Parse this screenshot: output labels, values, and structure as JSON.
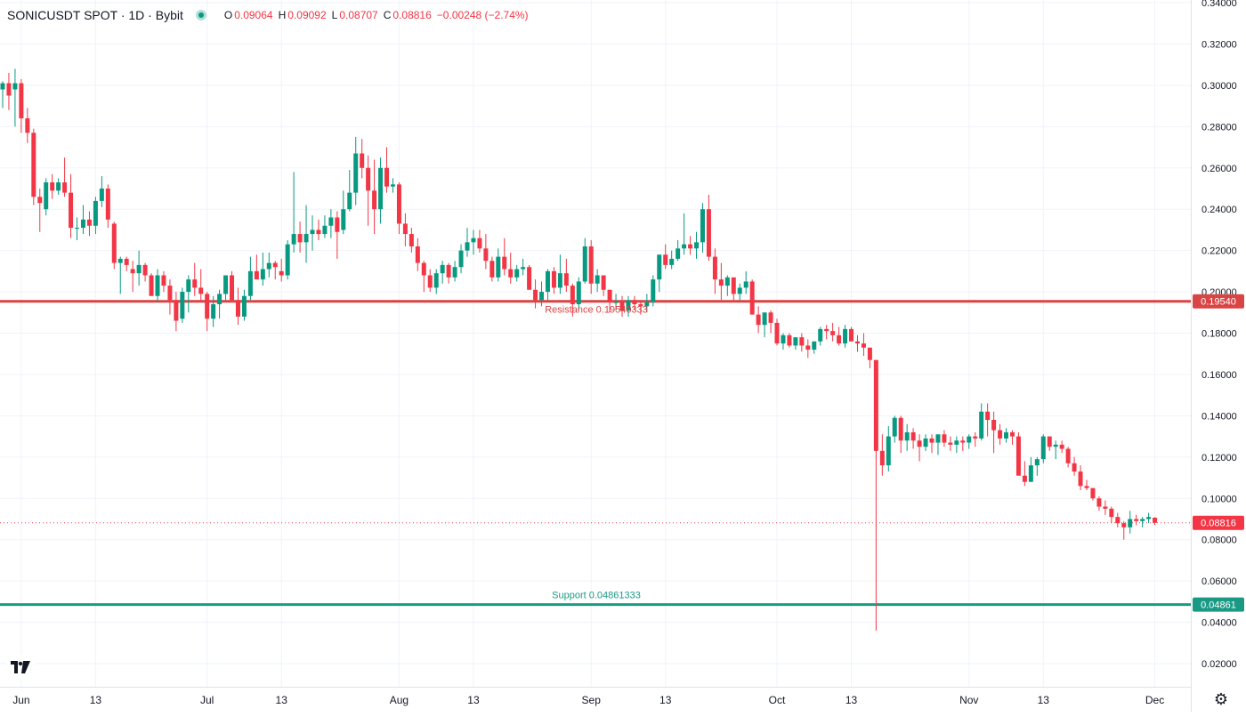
{
  "header": {
    "symbol": "SONICUSDT SPOT · 1D · Bybit",
    "o_label": "O",
    "o_value": "0.09064",
    "h_label": "H",
    "h_value": "0.09092",
    "l_label": "L",
    "l_value": "0.08707",
    "c_label": "C",
    "c_value": "0.08816",
    "change": "−0.00248 (−2.74%)"
  },
  "colors": {
    "up": "#089981",
    "down": "#f23645",
    "resistance": "#d94545",
    "support": "#1a9a85",
    "grid": "#f0f3fa",
    "text": "#131722"
  },
  "chart_data": {
    "type": "candlestick",
    "title": "SONICUSDT SPOT · 1D · Bybit",
    "y_ticks": [
      "0.34000",
      "0.32000",
      "0.30000",
      "0.28000",
      "0.26000",
      "0.24000",
      "0.22000",
      "0.20000",
      "0.18000",
      "0.16000",
      "0.14000",
      "0.12000",
      "0.10000",
      "0.08000",
      "0.06000",
      "0.04000",
      "0.02000"
    ],
    "ylim": [
      0.01,
      0.34
    ],
    "x_ticks": [
      {
        "date": "2025-06-01",
        "label": "Jun"
      },
      {
        "date": "2025-06-13",
        "label": "13"
      },
      {
        "date": "2025-07-01",
        "label": "Jul"
      },
      {
        "date": "2025-07-13",
        "label": "13"
      },
      {
        "date": "2025-08-01",
        "label": "Aug"
      },
      {
        "date": "2025-08-13",
        "label": "13"
      },
      {
        "date": "2025-09-01",
        "label": "Sep"
      },
      {
        "date": "2025-09-13",
        "label": "13"
      },
      {
        "date": "2025-10-01",
        "label": "Oct"
      },
      {
        "date": "2025-10-13",
        "label": "13"
      },
      {
        "date": "2025-11-01",
        "label": "Nov"
      },
      {
        "date": "2025-11-13",
        "label": "13"
      },
      {
        "date": "2025-12-01",
        "label": "Dec"
      }
    ],
    "first_date": "2025-05-29",
    "lines": [
      {
        "name": "Resistance",
        "value": 0.1954,
        "label": "Resistance 0.19540333",
        "price_label": "0.19540"
      },
      {
        "name": "Support",
        "value": 0.04861,
        "label": "Support 0.04861333",
        "price_label": "0.04861"
      }
    ],
    "last_price": {
      "value": 0.08816,
      "label": "0.08816"
    },
    "candles": [
      [
        0.298,
        0.302,
        0.289,
        0.301
      ],
      [
        0.301,
        0.306,
        0.288,
        0.295
      ],
      [
        0.298,
        0.308,
        0.28,
        0.301
      ],
      [
        0.301,
        0.303,
        0.277,
        0.284
      ],
      [
        0.284,
        0.289,
        0.272,
        0.277
      ],
      [
        0.277,
        0.279,
        0.242,
        0.246
      ],
      [
        0.246,
        0.25,
        0.229,
        0.243
      ],
      [
        0.24,
        0.255,
        0.237,
        0.253
      ],
      [
        0.253,
        0.257,
        0.245,
        0.249
      ],
      [
        0.249,
        0.255,
        0.247,
        0.253
      ],
      [
        0.253,
        0.265,
        0.246,
        0.248
      ],
      [
        0.248,
        0.257,
        0.226,
        0.231
      ],
      [
        0.231,
        0.236,
        0.225,
        0.231
      ],
      [
        0.231,
        0.242,
        0.228,
        0.235
      ],
      [
        0.235,
        0.239,
        0.227,
        0.232
      ],
      [
        0.232,
        0.246,
        0.228,
        0.244
      ],
      [
        0.244,
        0.256,
        0.241,
        0.25
      ],
      [
        0.25,
        0.252,
        0.231,
        0.235
      ],
      [
        0.233,
        0.234,
        0.211,
        0.214
      ],
      [
        0.214,
        0.217,
        0.199,
        0.216
      ],
      [
        0.216,
        0.217,
        0.21,
        0.213
      ],
      [
        0.211,
        0.215,
        0.2,
        0.209
      ],
      [
        0.209,
        0.22,
        0.203,
        0.213
      ],
      [
        0.213,
        0.214,
        0.205,
        0.208
      ],
      [
        0.208,
        0.209,
        0.198,
        0.198
      ],
      [
        0.198,
        0.211,
        0.195,
        0.208
      ],
      [
        0.208,
        0.21,
        0.2,
        0.203
      ],
      [
        0.203,
        0.206,
        0.189,
        0.196
      ],
      [
        0.196,
        0.2,
        0.181,
        0.186
      ],
      [
        0.187,
        0.202,
        0.185,
        0.2
      ],
      [
        0.2,
        0.208,
        0.19,
        0.206
      ],
      [
        0.206,
        0.214,
        0.198,
        0.202
      ],
      [
        0.202,
        0.211,
        0.195,
        0.199
      ],
      [
        0.199,
        0.2,
        0.181,
        0.187
      ],
      [
        0.187,
        0.198,
        0.183,
        0.194
      ],
      [
        0.194,
        0.201,
        0.187,
        0.199
      ],
      [
        0.199,
        0.208,
        0.196,
        0.208
      ],
      [
        0.208,
        0.21,
        0.196,
        0.196
      ],
      [
        0.196,
        0.202,
        0.184,
        0.188
      ],
      [
        0.188,
        0.201,
        0.186,
        0.198
      ],
      [
        0.198,
        0.217,
        0.196,
        0.21
      ],
      [
        0.21,
        0.218,
        0.206,
        0.206
      ],
      [
        0.206,
        0.219,
        0.203,
        0.211
      ],
      [
        0.211,
        0.219,
        0.207,
        0.214
      ],
      [
        0.214,
        0.215,
        0.206,
        0.212
      ],
      [
        0.21,
        0.216,
        0.205,
        0.208
      ],
      [
        0.208,
        0.225,
        0.206,
        0.223
      ],
      [
        0.223,
        0.258,
        0.219,
        0.228
      ],
      [
        0.228,
        0.234,
        0.219,
        0.224
      ],
      [
        0.224,
        0.242,
        0.214,
        0.228
      ],
      [
        0.228,
        0.237,
        0.22,
        0.23
      ],
      [
        0.23,
        0.235,
        0.225,
        0.228
      ],
      [
        0.228,
        0.237,
        0.226,
        0.232
      ],
      [
        0.232,
        0.24,
        0.226,
        0.236
      ],
      [
        0.236,
        0.239,
        0.216,
        0.229
      ],
      [
        0.23,
        0.249,
        0.228,
        0.24
      ],
      [
        0.24,
        0.259,
        0.239,
        0.248
      ],
      [
        0.248,
        0.275,
        0.242,
        0.267
      ],
      [
        0.267,
        0.274,
        0.255,
        0.26
      ],
      [
        0.26,
        0.266,
        0.232,
        0.249
      ],
      [
        0.249,
        0.264,
        0.228,
        0.24
      ],
      [
        0.24,
        0.265,
        0.233,
        0.26
      ],
      [
        0.26,
        0.27,
        0.248,
        0.251
      ],
      [
        0.251,
        0.255,
        0.248,
        0.252
      ],
      [
        0.252,
        0.253,
        0.228,
        0.233
      ],
      [
        0.233,
        0.238,
        0.222,
        0.228
      ],
      [
        0.228,
        0.231,
        0.219,
        0.222
      ],
      [
        0.222,
        0.226,
        0.21,
        0.214
      ],
      [
        0.214,
        0.215,
        0.2,
        0.208
      ],
      [
        0.208,
        0.211,
        0.2,
        0.202
      ],
      [
        0.202,
        0.211,
        0.199,
        0.209
      ],
      [
        0.209,
        0.215,
        0.204,
        0.213
      ],
      [
        0.213,
        0.214,
        0.204,
        0.207
      ],
      [
        0.207,
        0.215,
        0.205,
        0.212
      ],
      [
        0.212,
        0.223,
        0.209,
        0.22
      ],
      [
        0.22,
        0.231,
        0.217,
        0.224
      ],
      [
        0.224,
        0.23,
        0.218,
        0.226
      ],
      [
        0.226,
        0.23,
        0.219,
        0.221
      ],
      [
        0.221,
        0.228,
        0.211,
        0.215
      ],
      [
        0.215,
        0.217,
        0.205,
        0.207
      ],
      [
        0.207,
        0.221,
        0.205,
        0.217
      ],
      [
        0.217,
        0.226,
        0.208,
        0.211
      ],
      [
        0.211,
        0.219,
        0.204,
        0.207
      ],
      [
        0.207,
        0.213,
        0.205,
        0.211
      ],
      [
        0.211,
        0.216,
        0.208,
        0.212
      ],
      [
        0.212,
        0.213,
        0.201,
        0.201
      ],
      [
        0.201,
        0.206,
        0.192,
        0.196
      ],
      [
        0.196,
        0.205,
        0.193,
        0.2
      ],
      [
        0.2,
        0.211,
        0.196,
        0.21
      ],
      [
        0.21,
        0.212,
        0.199,
        0.202
      ],
      [
        0.202,
        0.218,
        0.199,
        0.209
      ],
      [
        0.209,
        0.216,
        0.2,
        0.203
      ],
      [
        0.203,
        0.204,
        0.188,
        0.194
      ],
      [
        0.194,
        0.207,
        0.191,
        0.205
      ],
      [
        0.205,
        0.226,
        0.204,
        0.222
      ],
      [
        0.222,
        0.225,
        0.199,
        0.204
      ],
      [
        0.204,
        0.211,
        0.2,
        0.208
      ],
      [
        0.208,
        0.207,
        0.198,
        0.201
      ],
      [
        0.201,
        0.201,
        0.19,
        0.195
      ],
      [
        0.195,
        0.199,
        0.191,
        0.195
      ],
      [
        0.195,
        0.198,
        0.188,
        0.191
      ],
      [
        0.191,
        0.198,
        0.188,
        0.196
      ],
      [
        0.196,
        0.198,
        0.191,
        0.194
      ],
      [
        0.194,
        0.196,
        0.189,
        0.193
      ],
      [
        0.193,
        0.199,
        0.19,
        0.195
      ],
      [
        0.195,
        0.208,
        0.193,
        0.206
      ],
      [
        0.206,
        0.218,
        0.2,
        0.218
      ],
      [
        0.218,
        0.223,
        0.211,
        0.213
      ],
      [
        0.213,
        0.22,
        0.211,
        0.216
      ],
      [
        0.216,
        0.225,
        0.215,
        0.221
      ],
      [
        0.221,
        0.238,
        0.218,
        0.223
      ],
      [
        0.223,
        0.227,
        0.218,
        0.221
      ],
      [
        0.221,
        0.229,
        0.216,
        0.224
      ],
      [
        0.224,
        0.243,
        0.219,
        0.24
      ],
      [
        0.24,
        0.247,
        0.215,
        0.217
      ],
      [
        0.217,
        0.221,
        0.199,
        0.206
      ],
      [
        0.206,
        0.214,
        0.196,
        0.203
      ],
      [
        0.203,
        0.208,
        0.198,
        0.207
      ],
      [
        0.207,
        0.206,
        0.195,
        0.199
      ],
      [
        0.199,
        0.204,
        0.196,
        0.202
      ],
      [
        0.202,
        0.21,
        0.199,
        0.205
      ],
      [
        0.205,
        0.206,
        0.189,
        0.189
      ],
      [
        0.189,
        0.193,
        0.18,
        0.184
      ],
      [
        0.184,
        0.19,
        0.178,
        0.19
      ],
      [
        0.19,
        0.191,
        0.18,
        0.185
      ],
      [
        0.185,
        0.187,
        0.174,
        0.175
      ],
      [
        0.175,
        0.18,
        0.172,
        0.179
      ],
      [
        0.179,
        0.18,
        0.173,
        0.174
      ],
      [
        0.174,
        0.178,
        0.172,
        0.178
      ],
      [
        0.178,
        0.18,
        0.171,
        0.174
      ],
      [
        0.174,
        0.177,
        0.168,
        0.172
      ],
      [
        0.172,
        0.176,
        0.17,
        0.176
      ],
      [
        0.176,
        0.183,
        0.174,
        0.182
      ],
      [
        0.182,
        0.184,
        0.177,
        0.181
      ],
      [
        0.181,
        0.185,
        0.176,
        0.179
      ],
      [
        0.179,
        0.183,
        0.174,
        0.175
      ],
      [
        0.175,
        0.184,
        0.173,
        0.182
      ],
      [
        0.182,
        0.183,
        0.176,
        0.176
      ],
      [
        0.176,
        0.179,
        0.171,
        0.175
      ],
      [
        0.175,
        0.18,
        0.169,
        0.173
      ],
      [
        0.173,
        0.172,
        0.163,
        0.167
      ],
      [
        0.167,
        0.167,
        0.036,
        0.123
      ],
      [
        0.123,
        0.131,
        0.111,
        0.116
      ],
      [
        0.116,
        0.135,
        0.113,
        0.13
      ],
      [
        0.13,
        0.14,
        0.127,
        0.139
      ],
      [
        0.139,
        0.14,
        0.122,
        0.128
      ],
      [
        0.128,
        0.136,
        0.123,
        0.132
      ],
      [
        0.132,
        0.134,
        0.124,
        0.128
      ],
      [
        0.128,
        0.131,
        0.118,
        0.125
      ],
      [
        0.125,
        0.131,
        0.123,
        0.129
      ],
      [
        0.129,
        0.131,
        0.122,
        0.127
      ],
      [
        0.127,
        0.13,
        0.121,
        0.131
      ],
      [
        0.131,
        0.133,
        0.125,
        0.127
      ],
      [
        0.127,
        0.13,
        0.123,
        0.126
      ],
      [
        0.126,
        0.13,
        0.122,
        0.128
      ],
      [
        0.128,
        0.13,
        0.123,
        0.127
      ],
      [
        0.127,
        0.131,
        0.124,
        0.13
      ],
      [
        0.13,
        0.132,
        0.125,
        0.129
      ],
      [
        0.129,
        0.146,
        0.128,
        0.142
      ],
      [
        0.142,
        0.146,
        0.13,
        0.138
      ],
      [
        0.138,
        0.142,
        0.122,
        0.133
      ],
      [
        0.133,
        0.136,
        0.126,
        0.129
      ],
      [
        0.129,
        0.134,
        0.127,
        0.132
      ],
      [
        0.132,
        0.133,
        0.126,
        0.13
      ],
      [
        0.13,
        0.132,
        0.114,
        0.111
      ],
      [
        0.111,
        0.118,
        0.106,
        0.108
      ],
      [
        0.108,
        0.12,
        0.108,
        0.116
      ],
      [
        0.116,
        0.12,
        0.111,
        0.119
      ],
      [
        0.119,
        0.131,
        0.117,
        0.13
      ],
      [
        0.13,
        0.13,
        0.123,
        0.125
      ],
      [
        0.125,
        0.128,
        0.119,
        0.126
      ],
      [
        0.126,
        0.128,
        0.122,
        0.124
      ],
      [
        0.124,
        0.125,
        0.115,
        0.117
      ],
      [
        0.117,
        0.12,
        0.111,
        0.113
      ],
      [
        0.113,
        0.116,
        0.104,
        0.106
      ],
      [
        0.106,
        0.109,
        0.104,
        0.105
      ],
      [
        0.105,
        0.105,
        0.099,
        0.1
      ],
      [
        0.1,
        0.101,
        0.094,
        0.096
      ],
      [
        0.096,
        0.099,
        0.092,
        0.095
      ],
      [
        0.095,
        0.096,
        0.088,
        0.091
      ],
      [
        0.091,
        0.093,
        0.086,
        0.088
      ],
      [
        0.088,
        0.089,
        0.08,
        0.086
      ],
      [
        0.086,
        0.094,
        0.083,
        0.09
      ],
      [
        0.09,
        0.092,
        0.087,
        0.089
      ],
      [
        0.089,
        0.091,
        0.086,
        0.09
      ],
      [
        0.09,
        0.093,
        0.088,
        0.091
      ],
      [
        0.09064,
        0.09092,
        0.08707,
        0.08816
      ]
    ]
  }
}
